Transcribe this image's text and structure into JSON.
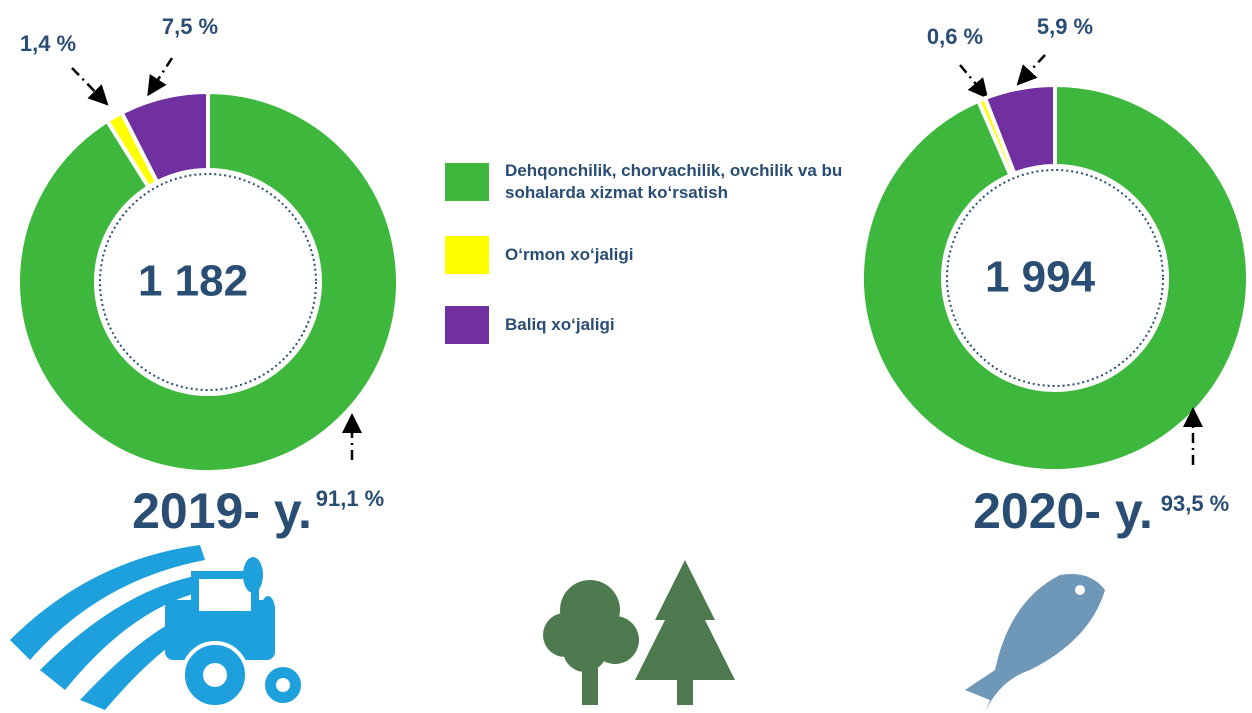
{
  "legend": [
    {
      "name": "Dehqonchilik, chorvachilik, ovchilik va bu sohalarda xizmat ko‘rsatish",
      "color": "#3db83d"
    },
    {
      "name": "O‘rmon xo‘jaligi",
      "color": "#ffff00"
    },
    {
      "name": "Baliq xo‘jaligi",
      "color": "#7030a0"
    }
  ],
  "chart_data": [
    {
      "type": "donut",
      "center_label": "1 182",
      "year_label": "2019- y.",
      "values": [
        91.1,
        1.4,
        7.5
      ],
      "value_labels": [
        "91,1 %",
        "1,4 %",
        "7,5 %"
      ],
      "colors": [
        "#3db83d",
        "#ffff00",
        "#7030a0"
      ]
    },
    {
      "type": "donut",
      "center_label": "1 994",
      "year_label": "2020- y.",
      "values": [
        93.5,
        0.6,
        5.9
      ],
      "value_labels": [
        "93,5 %",
        "0,6 %",
        "5,9 %"
      ],
      "colors": [
        "#3db83d",
        "#ffff00",
        "#7030a0"
      ]
    }
  ]
}
